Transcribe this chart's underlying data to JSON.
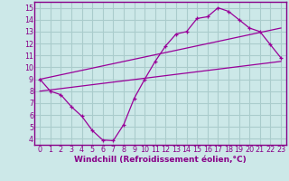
{
  "bg_color": "#cce8e8",
  "grid_color": "#aacccc",
  "line_color": "#990099",
  "axis_color": "#880088",
  "xlabel": "Windchill (Refroidissement éolien,°C)",
  "xlim": [
    -0.5,
    23.5
  ],
  "ylim": [
    3.5,
    15.5
  ],
  "xticks": [
    0,
    1,
    2,
    3,
    4,
    5,
    6,
    7,
    8,
    9,
    10,
    11,
    12,
    13,
    14,
    15,
    16,
    17,
    18,
    19,
    20,
    21,
    22,
    23
  ],
  "yticks": [
    4,
    5,
    6,
    7,
    8,
    9,
    10,
    11,
    12,
    13,
    14,
    15
  ],
  "curve1_x": [
    0,
    1,
    2,
    3,
    4,
    5,
    6,
    7,
    8,
    9,
    10,
    11,
    12,
    13,
    14,
    15,
    16,
    17,
    18,
    19,
    20,
    21,
    22,
    23
  ],
  "curve1_y": [
    9.0,
    8.0,
    7.7,
    6.7,
    5.9,
    4.7,
    3.9,
    3.85,
    5.2,
    7.4,
    9.0,
    10.5,
    11.8,
    12.8,
    13.0,
    14.1,
    14.25,
    15.0,
    14.7,
    14.0,
    13.3,
    13.0,
    11.9,
    10.8
  ],
  "curve2_x": [
    0,
    23
  ],
  "curve2_y": [
    8.0,
    10.5
  ],
  "curve3_x": [
    0,
    23
  ],
  "curve3_y": [
    9.0,
    13.3
  ],
  "tick_fontsize": 5.8,
  "label_fontsize": 6.5
}
